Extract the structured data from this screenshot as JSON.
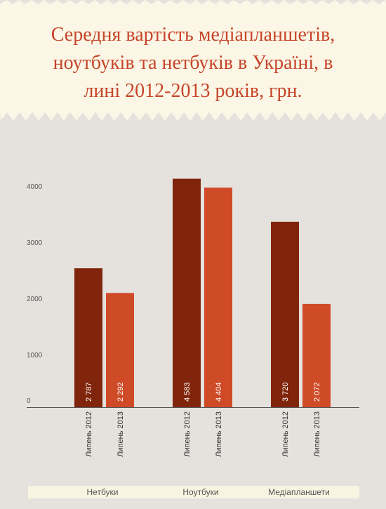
{
  "title_lines": [
    "Середня вартість медіапланшетів,",
    "ноутбуків та нетбуків в Україні, в",
    "лині 2012-2013 років, грн."
  ],
  "colors": {
    "series_2012": "#80250c",
    "series_2013": "#cf4b27",
    "title": "#c6452a",
    "banner": "#fbf6e6"
  },
  "chart_data": {
    "type": "bar",
    "title": "Середня вартість медіапланшетів, ноутбуків та нетбуків в Україні, в лині 2012-2013 років, грн.",
    "categories": [
      "Нетбуки",
      "Ноутбуки",
      "Медіапланшети"
    ],
    "series": [
      {
        "name": "Липень 2012",
        "values": [
          2787,
          4583,
          3720
        ],
        "value_labels": [
          "2 787",
          "4 583",
          "3 720"
        ]
      },
      {
        "name": "Липень 2013",
        "values": [
          2292,
          4404,
          2072
        ],
        "value_labels": [
          "2 292",
          "4 404",
          "2 072"
        ]
      }
    ],
    "yticks": [
      "0",
      "1000",
      "2000",
      "3000",
      "4000"
    ],
    "ylim": [
      0,
      5000
    ],
    "grid": false,
    "legend": "none"
  }
}
